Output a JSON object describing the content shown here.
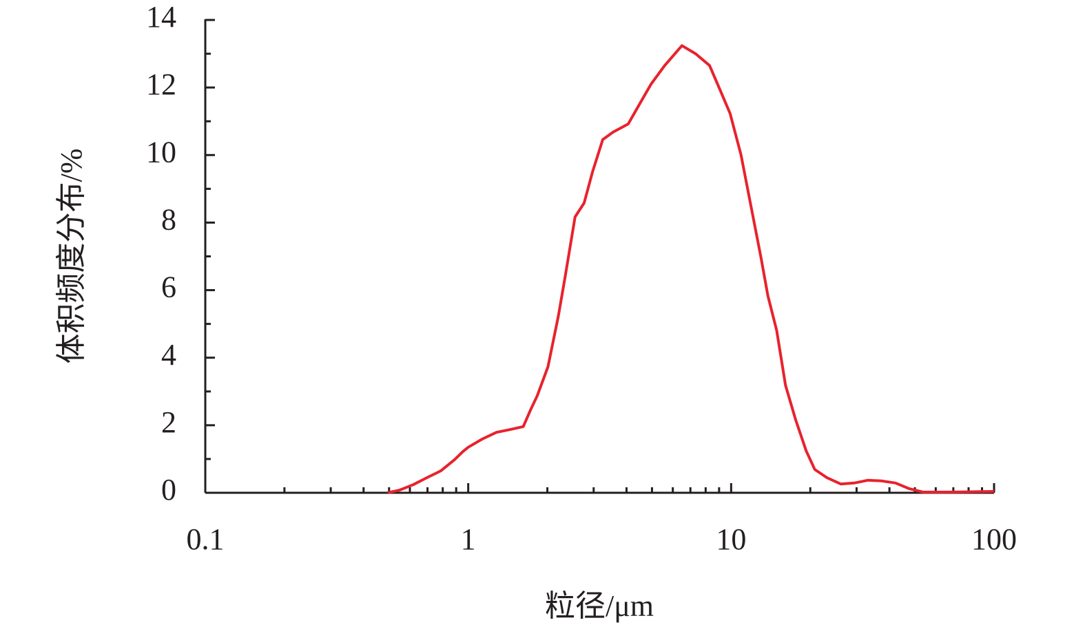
{
  "chart_data": {
    "type": "line",
    "x_label": "粒径/μm",
    "y_label": "体积频度分布/%",
    "xscale": "log",
    "x": [
      0.494,
      0.548,
      0.618,
      0.698,
      0.787,
      0.887,
      0.955,
      1.0,
      1.13,
      1.28,
      1.44,
      1.62,
      1.73,
      1.83,
      2.01,
      2.2,
      2.33,
      2.55,
      2.76,
      2.97,
      3.25,
      3.56,
      4.06,
      4.53,
      4.96,
      5.59,
      6.5,
      7.33,
      8.28,
      9.06,
      9.91,
      10.9,
      11.9,
      13.0,
      13.8,
      14.9,
      16.1,
      17.6,
      19.3,
      20.8,
      23.1,
      26.1,
      29.4,
      33.1,
      37.4,
      42.2,
      47.6,
      53.7,
      68.4,
      100
    ],
    "series": [
      {
        "color": "#e8222d",
        "values": [
          0,
          0.08,
          0.24,
          0.45,
          0.65,
          0.98,
          1.22,
          1.35,
          1.59,
          1.79,
          1.87,
          1.96,
          2.47,
          2.87,
          3.73,
          5.22,
          6.34,
          8.17,
          8.58,
          9.5,
          10.46,
          10.68,
          10.92,
          11.57,
          12.1,
          12.65,
          13.24,
          13.0,
          12.65,
          11.94,
          11.23,
          10.01,
          8.48,
          6.95,
          5.83,
          4.81,
          3.18,
          2.16,
          1.24,
          0.69,
          0.45,
          0.26,
          0.29,
          0.37,
          0.35,
          0.29,
          0.12,
          0.02,
          0.02,
          0.04
        ]
      }
    ],
    "xlim": [
      0.1,
      100
    ],
    "xticks": [
      0.1,
      1,
      10,
      100
    ],
    "ylim": [
      0,
      14
    ],
    "yticks": [
      0,
      2,
      4,
      6,
      8,
      10,
      12,
      14
    ]
  }
}
